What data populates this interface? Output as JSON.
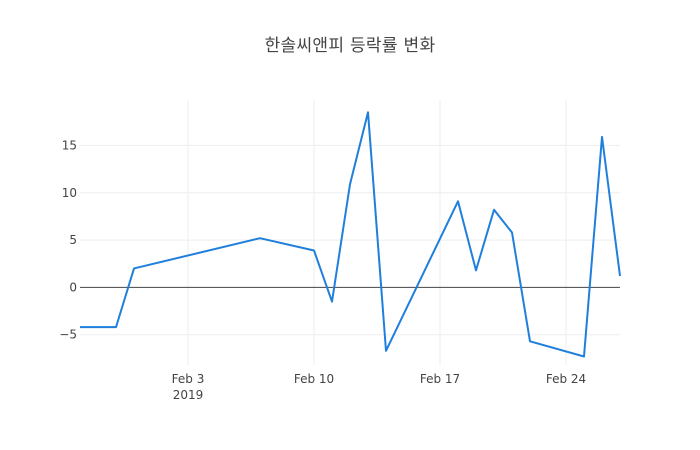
{
  "chart_data": {
    "type": "line",
    "title": "한솔씨앤피 등락률 변화",
    "xlabel": "",
    "ylabel": "",
    "x": [
      "2019-01-28",
      "2019-01-30",
      "2019-01-31",
      "2019-02-07",
      "2019-02-10",
      "2019-02-11",
      "2019-02-12",
      "2019-02-13",
      "2019-02-14",
      "2019-02-18",
      "2019-02-19",
      "2019-02-20",
      "2019-02-21",
      "2019-02-22",
      "2019-02-25",
      "2019-02-26",
      "2019-02-27"
    ],
    "series": [
      {
        "name": "",
        "values": [
          -4.2,
          -4.2,
          2.0,
          5.2,
          3.9,
          -1.5,
          10.9,
          18.5,
          -6.7,
          9.1,
          1.8,
          8.2,
          5.8,
          -5.7,
          -7.3,
          15.9,
          1.2
        ]
      }
    ],
    "xlim": [
      "2019-01-28",
      "2019-02-27"
    ],
    "ylim": [
      -8.2,
      19.8
    ],
    "xticks": [
      {
        "date": "2019-02-03",
        "label": "Feb 3",
        "sub": "2019"
      },
      {
        "date": "2019-02-10",
        "label": "Feb 10",
        "sub": ""
      },
      {
        "date": "2019-02-17",
        "label": "Feb 17",
        "sub": ""
      },
      {
        "date": "2019-02-24",
        "label": "Feb 24",
        "sub": ""
      }
    ],
    "yticks": [
      {
        "value": -5,
        "label": "−5"
      },
      {
        "value": 0,
        "label": "0"
      },
      {
        "value": 5,
        "label": "5"
      },
      {
        "value": 10,
        "label": "10"
      },
      {
        "value": 15,
        "label": "15"
      }
    ],
    "grid": true,
    "zero_line": true,
    "line_color": "#1f7fdc",
    "grid_color": "#eeeeee",
    "zero_line_color": "#444444"
  }
}
